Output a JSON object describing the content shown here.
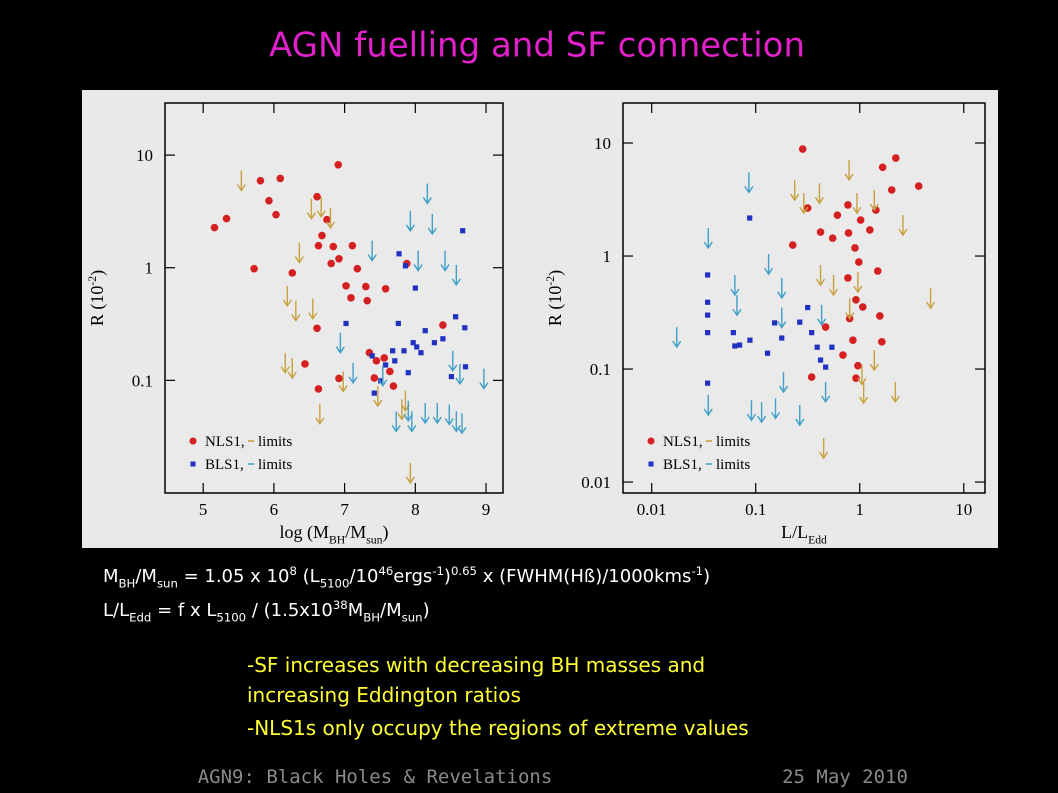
{
  "title": "AGN fuelling and SF connection",
  "chart_data": [
    {
      "type": "scatter",
      "xscale": "linear",
      "yscale": "log",
      "xlabel": [
        {
          "t": "log (M"
        },
        {
          "sub": "BH"
        },
        {
          "t": "/M"
        },
        {
          "sub": "sun"
        },
        {
          "t": ")"
        }
      ],
      "ylabel": [
        {
          "t": "R (10"
        },
        {
          "sup": "-2"
        },
        {
          "t": ")"
        }
      ],
      "xlim": [
        4.46,
        9.24
      ],
      "ylim": [
        0.01,
        29
      ],
      "xticks": [
        5,
        6,
        7,
        8,
        9
      ],
      "yticks": [
        10,
        1,
        0.1
      ],
      "legend": [
        {
          "label": "NLS1,",
          "limits": "limits"
        },
        {
          "label": "BLS1,",
          "limits": "limits"
        }
      ],
      "series": [
        {
          "color": "#d42020",
          "marker": "circle",
          "x": [
            5.16,
            5.33,
            5.72,
            5.81,
            6.09,
            5.93,
            6.03,
            6.26,
            6.44,
            6.61,
            6.63,
            6.61,
            6.75,
            6.63,
            6.91,
            6.84,
            6.68,
            6.92,
            6.81,
            7.11,
            7.02,
            7.09,
            7.18,
            6.92,
            7.3,
            7.35,
            7.32,
            7.45,
            7.56,
            7.58,
            7.64,
            7.42,
            7.88,
            8.39,
            7.69
          ],
          "values": [
            2.27,
            2.73,
            0.98,
            5.93,
            6.2,
            3.94,
            2.96,
            0.9,
            0.14,
            4.27,
            1.57,
            0.29,
            2.67,
            0.084,
            8.2,
            1.54,
            1.93,
            1.2,
            1.09,
            1.57,
            0.69,
            0.54,
            0.98,
            0.104,
            0.68,
            0.176,
            0.51,
            0.149,
            0.158,
            0.65,
            0.12,
            0.105,
            1.09,
            0.31,
            0.089
          ]
        },
        {
          "color": "#c8a040",
          "marker": "arrow",
          "x": [
            5.54,
            6.19,
            6.31,
            6.55,
            6.36,
            6.16,
            6.26,
            6.53,
            6.67,
            6.8,
            6.65,
            7.47,
            7.81,
            7.86,
            7.93,
            6.98
          ],
          "values": [
            7.3,
            0.69,
            0.51,
            0.53,
            1.67,
            0.176,
            0.158,
            4.1,
            4.27,
            3.4,
            0.062,
            0.089,
            0.068,
            0.081,
            0.0185,
            0.12
          ]
        },
        {
          "color": "#2030c0",
          "marker": "square",
          "x": [
            7.02,
            7.39,
            7.42,
            7.51,
            7.58,
            7.68,
            7.71,
            7.76,
            7.77,
            7.86,
            7.9,
            7.97,
            8.0,
            8.02,
            8.14,
            8.27,
            8.39,
            8.51,
            8.57,
            8.7,
            8.71,
            8.67,
            8.08,
            7.84
          ],
          "values": [
            0.32,
            0.165,
            0.077,
            0.099,
            0.137,
            0.183,
            0.149,
            0.32,
            1.33,
            1.04,
            0.117,
            0.216,
            0.66,
            0.198,
            0.276,
            0.216,
            0.234,
            0.108,
            0.367,
            0.293,
            0.132,
            2.13,
            0.176,
            0.183
          ]
        },
        {
          "color": "#40a0c8",
          "marker": "arrow",
          "x": [
            8.17,
            7.93,
            8.24,
            7.39,
            8.04,
            8.58,
            8.42,
            6.94,
            7.12,
            7.54,
            7.9,
            7.95,
            8.14,
            8.31,
            8.48,
            8.58,
            8.66,
            8.97,
            8.63,
            8.53,
            7.73
          ],
          "values": [
            5.6,
            3.2,
            3.0,
            1.74,
            1.42,
            1.06,
            1.42,
            0.265,
            0.143,
            0.135,
            0.066,
            0.053,
            0.063,
            0.063,
            0.061,
            0.053,
            0.051,
            0.127,
            0.14,
            0.183,
            0.053
          ]
        }
      ]
    },
    {
      "type": "scatter",
      "xscale": "log",
      "yscale": "log",
      "xlabel": [
        {
          "t": "L/L"
        },
        {
          "sub": "Edd"
        }
      ],
      "ylabel": [
        {
          "t": "R (10"
        },
        {
          "sup": "-2"
        },
        {
          "t": ")"
        }
      ],
      "xlim": [
        0.0053,
        16
      ],
      "ylim": [
        0.008,
        22.6
      ],
      "xticks": [
        0.01,
        0.1,
        1,
        10
      ],
      "yticks": [
        10,
        1,
        0.1,
        0.01
      ],
      "legend": [
        {
          "label": "NLS1,",
          "limits": "limits"
        },
        {
          "label": "BLS1,",
          "limits": "limits"
        }
      ],
      "series": [
        {
          "color": "#d42020",
          "marker": "circle",
          "x": [
            0.283,
            3.69,
            2.22,
            1.66,
            2.03,
            0.77,
            0.316,
            0.61,
            1.02,
            1.43,
            0.55,
            0.42,
            0.78,
            1.25,
            0.227,
            0.9,
            0.98,
            1.49,
            0.77,
            0.92,
            0.8,
            1.07,
            1.56,
            1.63,
            0.86,
            0.69,
            0.345,
            0.92,
            0.96,
            0.47
          ],
          "values": [
            8.85,
            4.16,
            7.36,
            6.1,
            3.84,
            2.83,
            2.66,
            2.3,
            2.08,
            2.55,
            1.44,
            1.63,
            1.6,
            1.7,
            1.25,
            1.18,
            0.885,
            0.737,
            0.64,
            0.41,
            0.28,
            0.354,
            0.295,
            0.174,
            0.18,
            0.133,
            0.085,
            0.083,
            0.107,
            0.235
          ]
        },
        {
          "color": "#c8a040",
          "marker": "arrow",
          "x": [
            0.41,
            0.237,
            0.29,
            0.79,
            0.94,
            1.38,
            2.6,
            4.8,
            0.42,
            0.56,
            0.8,
            0.96,
            1.09,
            1.38,
            2.2,
            0.45,
            1.05
          ],
          "values": [
            4.4,
            4.7,
            3.6,
            7.1,
            3.6,
            3.84,
            2.3,
            0.52,
            0.83,
            0.68,
            0.42,
            0.72,
            0.075,
            0.147,
            0.077,
            0.0245,
            0.11
          ]
        },
        {
          "color": "#2030c0",
          "marker": "square",
          "x": [
            0.0875,
            0.0345,
            0.0345,
            0.0345,
            0.0345,
            0.061,
            0.063,
            0.088,
            0.13,
            0.152,
            0.178,
            0.265,
            0.316,
            0.345,
            0.39,
            0.42,
            0.47,
            0.54,
            0.0345,
            0.07
          ],
          "values": [
            2.17,
            0.68,
            0.39,
            0.3,
            0.21,
            0.21,
            0.16,
            0.18,
            0.138,
            0.256,
            0.188,
            0.26,
            0.35,
            0.21,
            0.156,
            0.12,
            0.104,
            0.156,
            0.075,
            0.163
          ]
        },
        {
          "color": "#40a0c8",
          "marker": "arrow",
          "x": [
            0.035,
            0.086,
            0.133,
            0.178,
            0.178,
            0.066,
            0.0174,
            0.063,
            0.035,
            0.091,
            0.114,
            0.155,
            0.265,
            0.185,
            0.43,
            0.47
          ],
          "values": [
            1.77,
            5.5,
            1.04,
            0.64,
            0.35,
            0.45,
            0.235,
            0.68,
            0.059,
            0.053,
            0.051,
            0.055,
            0.048,
            0.094,
            0.37,
            0.077
          ]
        }
      ]
    }
  ],
  "formulas": [
    [
      {
        "t": "M"
      },
      {
        "sub": "BH"
      },
      {
        "t": "/M"
      },
      {
        "sub": "sun"
      },
      {
        "t": " = 1.05 x 10"
      },
      {
        "sup": "8"
      },
      {
        "t": " (L"
      },
      {
        "sub": "5100"
      },
      {
        "t": "/10"
      },
      {
        "sup": "46"
      },
      {
        "t": "ergs"
      },
      {
        "sup": "-1"
      },
      {
        "t": ")"
      },
      {
        "sup": "0.65"
      },
      {
        "t": " x (FWHM(Hß)/1000kms"
      },
      {
        "sup": "-1"
      },
      {
        "t": ")"
      }
    ],
    [
      {
        "t": "L/L"
      },
      {
        "sub": "Edd"
      },
      {
        "t": " = f x L"
      },
      {
        "sub": "5100"
      },
      {
        "t": " / (1.5x10"
      },
      {
        "sup": "38"
      },
      {
        "t": "M"
      },
      {
        "sub": "BH"
      },
      {
        "t": "/M"
      },
      {
        "sub": "sun"
      },
      {
        "t": ")"
      }
    ]
  ],
  "bullets": [
    "-SF increases with decreasing BH masses and",
    "increasing Eddington ratios",
    "-NLS1s only occupy the regions of extreme values"
  ],
  "footer": {
    "left": "AGN9: Black Holes & Revelations",
    "right": "25 May 2010"
  }
}
